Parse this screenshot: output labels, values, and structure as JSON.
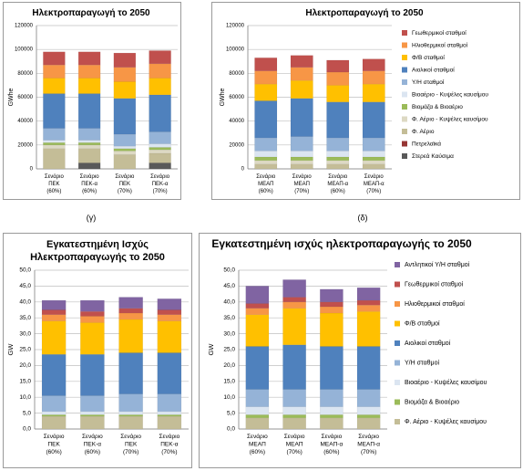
{
  "labels": [
    "(γ)",
    "(δ)"
  ],
  "chart_data": [
    {
      "type": "bar",
      "stacked": true,
      "title": "Ηλεκτροπαραγωγή το 2050",
      "ylabel": "GWhe",
      "categories": [
        "Σενάριο ΠΕΚ (60%)",
        "Σενάριο ΠΕΚ-α (60%)",
        "Σενάριο ΠΕΚ (70%)",
        "Σενάριο ΠΕΚ-α (70%)"
      ],
      "ylim": [
        0,
        120000
      ],
      "yticks": [
        0,
        20000,
        40000,
        60000,
        80000,
        100000,
        120000
      ],
      "grid": true,
      "series": [
        {
          "color": "#595959",
          "values": [
            0,
            5000,
            0,
            5000
          ]
        },
        {
          "color": "#963634",
          "values": [
            0,
            0,
            0,
            0
          ]
        },
        {
          "color": "#c4bd97",
          "values": [
            17000,
            12000,
            12000,
            8000
          ]
        },
        {
          "color": "#ddd9c3",
          "values": [
            3000,
            3000,
            3000,
            3000
          ]
        },
        {
          "color": "#9bbb59",
          "values": [
            2000,
            2000,
            2000,
            2000
          ]
        },
        {
          "color": "#dbe5f1",
          "values": [
            2000,
            2000,
            2000,
            3000
          ]
        },
        {
          "color": "#95b3d7",
          "values": [
            10000,
            10000,
            10000,
            10000
          ]
        },
        {
          "color": "#4f81bd",
          "values": [
            29000,
            29000,
            30000,
            31000
          ]
        },
        {
          "color": "#ffc000",
          "values": [
            13000,
            13000,
            14000,
            14000
          ]
        },
        {
          "color": "#f79646",
          "values": [
            11000,
            11000,
            12000,
            12000
          ]
        },
        {
          "color": "#c0504d",
          "values": [
            11000,
            11000,
            12000,
            11000
          ]
        }
      ]
    },
    {
      "type": "bar",
      "stacked": true,
      "title": "Ηλεκτροπαραγωγή το 2050",
      "ylabel": "GWhe",
      "categories": [
        "Σενάριο ΜΕΑΠ (60%)",
        "Σενάριο ΜΕΑΠ (70%)",
        "Σενάριο ΜΕΑΠ-α (60%)",
        "Σενάριο ΜΕΑΠ-α (70%)"
      ],
      "ylim": [
        0,
        120000
      ],
      "yticks": [
        0,
        20000,
        40000,
        60000,
        80000,
        100000,
        120000
      ],
      "grid": true,
      "legend": "right",
      "series": [
        {
          "name": "Στερεά Καύσιμα",
          "color": "#595959",
          "values": [
            0,
            0,
            0,
            0
          ]
        },
        {
          "name": "Πετρελαϊκά",
          "color": "#963634",
          "values": [
            0,
            0,
            0,
            0
          ]
        },
        {
          "name": "Φ. Αέριο",
          "color": "#c4bd97",
          "values": [
            4000,
            4000,
            4000,
            4000
          ]
        },
        {
          "name": "Φ. Αέριο - Κυψέλες καυσίμου",
          "color": "#ddd9c3",
          "values": [
            3000,
            3000,
            3000,
            3000
          ]
        },
        {
          "name": "Βιομάζα & Βιοαέριο",
          "color": "#9bbb59",
          "values": [
            3000,
            3000,
            3000,
            3000
          ]
        },
        {
          "name": "Βιοαέριο - Κυψέλες καυσίμου",
          "color": "#dbe5f1",
          "values": [
            5000,
            5000,
            5000,
            5000
          ]
        },
        {
          "name": "Υ/Η σταθμοί",
          "color": "#95b3d7",
          "values": [
            11000,
            12000,
            11000,
            11000
          ]
        },
        {
          "name": "Αιολικοί σταθμοί",
          "color": "#4f81bd",
          "values": [
            31000,
            32000,
            30000,
            30000
          ]
        },
        {
          "name": "Φ/Β σταθμοί",
          "color": "#ffc000",
          "values": [
            14000,
            15000,
            14000,
            15000
          ]
        },
        {
          "name": "Ηλιοθερμικοί σταθμοί",
          "color": "#f79646",
          "values": [
            11000,
            11000,
            11000,
            11000
          ]
        },
        {
          "name": "Γεωθερμικοί σταθμοί",
          "color": "#c0504d",
          "values": [
            11000,
            10000,
            10000,
            10000
          ]
        }
      ]
    },
    {
      "type": "bar",
      "stacked": true,
      "title": "Εγκατεστημένη Ισχύς Ηλεκτροπαραγωγής το 2050",
      "ylabel": "GW",
      "categories": [
        "Σενάριο ΠΕΚ (60%)",
        "Σενάριο ΠΕΚ-α (60%)",
        "Σενάριο ΠΕΚ (70%)",
        "Σενάριο ΠΕΚ-α (70%)"
      ],
      "ylim": [
        0,
        50
      ],
      "grid": true,
      "yticks": [
        {
          "value": 0,
          "label": "0,0"
        },
        {
          "value": 5,
          "label": "5,0"
        },
        {
          "value": 10,
          "label": "10,0"
        },
        {
          "value": 15,
          "label": "15,0"
        },
        {
          "value": 20,
          "label": "20,0"
        },
        {
          "value": 25,
          "label": "25,0"
        },
        {
          "value": 30,
          "label": "30,0"
        },
        {
          "value": 35,
          "label": "35,0"
        },
        {
          "value": 40,
          "label": "40,0"
        },
        {
          "value": 45,
          "label": "45,0"
        },
        {
          "value": 50,
          "label": "50,0"
        }
      ],
      "series": [
        {
          "color": "#c4bd97",
          "values": [
            4.0,
            4.0,
            4.0,
            4.0
          ]
        },
        {
          "color": "#9bbb59",
          "values": [
            0.5,
            0.5,
            0.5,
            0.5
          ]
        },
        {
          "color": "#dbe5f1",
          "values": [
            1.0,
            1.0,
            1.0,
            1.0
          ]
        },
        {
          "color": "#95b3d7",
          "values": [
            5.0,
            5.0,
            5.5,
            5.5
          ]
        },
        {
          "color": "#4f81bd",
          "values": [
            13.0,
            13.0,
            13.0,
            13.0
          ]
        },
        {
          "color": "#ffc000",
          "values": [
            10.5,
            10.0,
            10.5,
            10.0
          ]
        },
        {
          "color": "#f79646",
          "values": [
            2.0,
            2.0,
            2.0,
            2.0
          ]
        },
        {
          "color": "#c0504d",
          "values": [
            1.5,
            1.5,
            1.5,
            1.5
          ]
        },
        {
          "color": "#8064a2",
          "values": [
            3.0,
            3.5,
            3.5,
            3.5
          ]
        }
      ]
    },
    {
      "type": "bar",
      "stacked": true,
      "title": "Εγκατεστημένη ισχύς ηλεκτροπαραγωγής το 2050",
      "ylabel": "GW",
      "categories": [
        "Σενάριο ΜΕΑΠ (60%)",
        "Σενάριο ΜΕΑΠ (70%)",
        "Σενάριο ΜΕΑΠ-α (60%)",
        "Σενάριο ΜΕΑΠ-α (70%)"
      ],
      "ylim": [
        0,
        50
      ],
      "grid": true,
      "legend": "right",
      "yticks": [
        {
          "value": 0,
          "label": "0,0"
        },
        {
          "value": 5,
          "label": "5,0"
        },
        {
          "value": 10,
          "label": "10,0"
        },
        {
          "value": 15,
          "label": "15,0"
        },
        {
          "value": 20,
          "label": "20,0"
        },
        {
          "value": 25,
          "label": "25,0"
        },
        {
          "value": 30,
          "label": "30,0"
        },
        {
          "value": 35,
          "label": "35,0"
        },
        {
          "value": 40,
          "label": "40,0"
        },
        {
          "value": 45,
          "label": "45,0"
        },
        {
          "value": 50,
          "label": "50,0"
        }
      ],
      "series": [
        {
          "name": "Φ. Αέριο - Κυψέλες καυσίμου",
          "color": "#c4bd97",
          "values": [
            3.5,
            3.5,
            3.5,
            3.5
          ]
        },
        {
          "name": "Βιομάζα & Βιοαέριο",
          "color": "#9bbb59",
          "values": [
            1.0,
            1.0,
            1.0,
            1.0
          ]
        },
        {
          "name": "Βιοαέριο - Κυψέλες καυσίμου",
          "color": "#dbe5f1",
          "values": [
            2.5,
            2.5,
            2.5,
            2.5
          ]
        },
        {
          "name": "Υ/Η σταθμοί",
          "color": "#95b3d7",
          "values": [
            5.5,
            5.5,
            5.5,
            5.5
          ]
        },
        {
          "name": "Αιολικοί σταθμοί",
          "color": "#4f81bd",
          "values": [
            13.5,
            14.0,
            13.5,
            13.5
          ]
        },
        {
          "name": "Φ/Β σταθμοί",
          "color": "#ffc000",
          "values": [
            10.0,
            11.5,
            10.5,
            11.0
          ]
        },
        {
          "name": "Ηλιοθερμικοί σταθμοί",
          "color": "#f79646",
          "values": [
            2.0,
            2.0,
            2.0,
            2.0
          ]
        },
        {
          "name": "Γεωθερμικοί σταθμοί",
          "color": "#c0504d",
          "values": [
            1.5,
            1.5,
            1.5,
            1.5
          ]
        },
        {
          "name": "Αντλητικοί Υ/Η σταθμοί",
          "color": "#8064a2",
          "values": [
            5.5,
            5.5,
            4.0,
            4.0
          ]
        }
      ]
    }
  ]
}
